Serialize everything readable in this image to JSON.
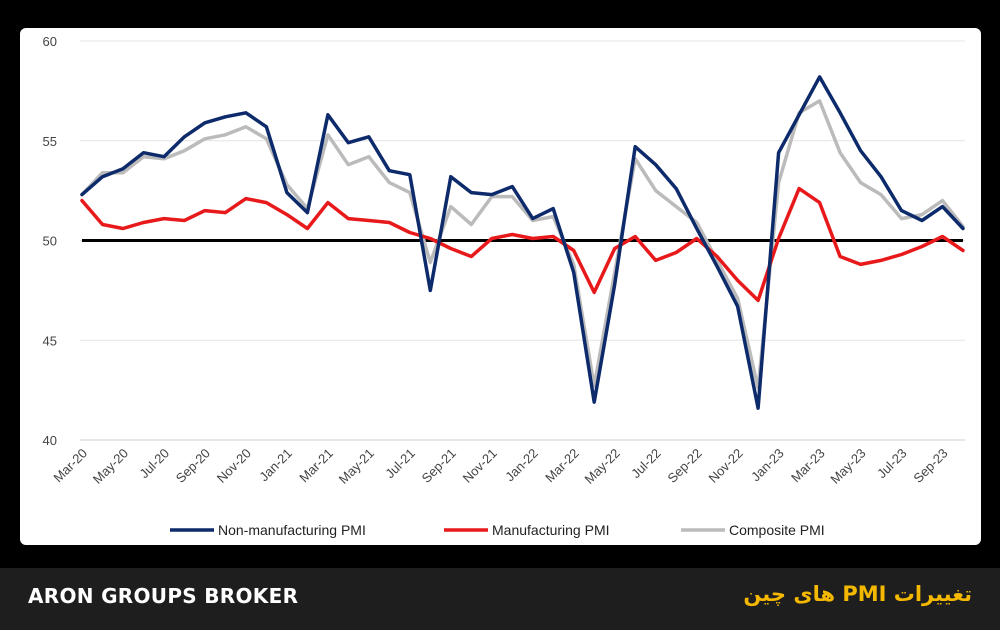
{
  "footer": {
    "brand": "ARON GROUPS BROKER",
    "headline": "تغییرات PMI های چین"
  },
  "chart_data": {
    "type": "line",
    "ylim": [
      40,
      60
    ],
    "yticks": [
      40,
      45,
      50,
      55,
      60
    ],
    "reference_line": 50,
    "grid": "horizontal",
    "legend_position": "bottom",
    "x": [
      "Mar-20",
      "Apr-20",
      "May-20",
      "Jun-20",
      "Jul-20",
      "Aug-20",
      "Sep-20",
      "Oct-20",
      "Nov-20",
      "Dec-20",
      "Jan-21",
      "Feb-21",
      "Mar-21",
      "Apr-21",
      "May-21",
      "Jun-21",
      "Jul-21",
      "Aug-21",
      "Sep-21",
      "Oct-21",
      "Nov-21",
      "Dec-21",
      "Jan-22",
      "Feb-22",
      "Mar-22",
      "Apr-22",
      "May-22",
      "Jun-22",
      "Jul-22",
      "Aug-22",
      "Sep-22",
      "Oct-22",
      "Nov-22",
      "Dec-22",
      "Jan-23",
      "Feb-23",
      "Mar-23",
      "Apr-23",
      "May-23",
      "Jun-23",
      "Jul-23",
      "Aug-23",
      "Sep-23",
      "Oct-23"
    ],
    "tick_labels": [
      "Mar-20",
      "May-20",
      "Jul-20",
      "Sep-20",
      "Nov-20",
      "Jan-21",
      "Mar-21",
      "May-21",
      "Jul-21",
      "Sep-21",
      "Nov-21",
      "Jan-22",
      "Mar-22",
      "May-22",
      "Jul-22",
      "Sep-22",
      "Nov-22",
      "Jan-23",
      "Mar-23",
      "May-23",
      "Jul-23",
      "Sep-23"
    ],
    "series": [
      {
        "name": "Non-manufacturing PMI",
        "color": "#0d2a6b",
        "values": [
          52.3,
          53.2,
          53.6,
          54.4,
          54.2,
          55.2,
          55.9,
          56.2,
          56.4,
          55.7,
          52.4,
          51.4,
          56.3,
          54.9,
          55.2,
          53.5,
          53.3,
          47.5,
          53.2,
          52.4,
          52.3,
          52.7,
          51.1,
          51.6,
          48.4,
          41.9,
          47.8,
          54.7,
          53.8,
          52.6,
          50.6,
          48.7,
          46.7,
          41.6,
          54.4,
          56.3,
          58.2,
          56.4,
          54.5,
          53.2,
          51.5,
          51.0,
          51.7,
          50.6
        ]
      },
      {
        "name": "Manufacturing PMI",
        "color": "#e8191b",
        "values": [
          52.0,
          50.8,
          50.6,
          50.9,
          51.1,
          51.0,
          51.5,
          51.4,
          52.1,
          51.9,
          51.3,
          50.6,
          51.9,
          51.1,
          51.0,
          50.9,
          50.4,
          50.1,
          49.6,
          49.2,
          50.1,
          50.3,
          50.1,
          50.2,
          49.5,
          47.4,
          49.6,
          50.2,
          49.0,
          49.4,
          50.1,
          49.2,
          48.0,
          47.0,
          50.1,
          52.6,
          51.9,
          49.2,
          48.8,
          49.0,
          49.3,
          49.7,
          50.2,
          49.5
        ]
      },
      {
        "name": "Composite PMI",
        "color": "#bbbbbb",
        "values": [
          52.3,
          53.4,
          53.4,
          54.2,
          54.1,
          54.5,
          55.1,
          55.3,
          55.7,
          55.1,
          52.8,
          51.6,
          55.3,
          53.8,
          54.2,
          52.9,
          52.4,
          48.9,
          51.7,
          50.8,
          52.2,
          52.2,
          51.0,
          51.2,
          48.8,
          42.7,
          48.4,
          54.1,
          52.5,
          51.7,
          50.9,
          49.0,
          47.1,
          42.6,
          52.9,
          56.4,
          57.0,
          54.4,
          52.9,
          52.3,
          51.1,
          51.3,
          52.0,
          50.7
        ]
      }
    ]
  }
}
